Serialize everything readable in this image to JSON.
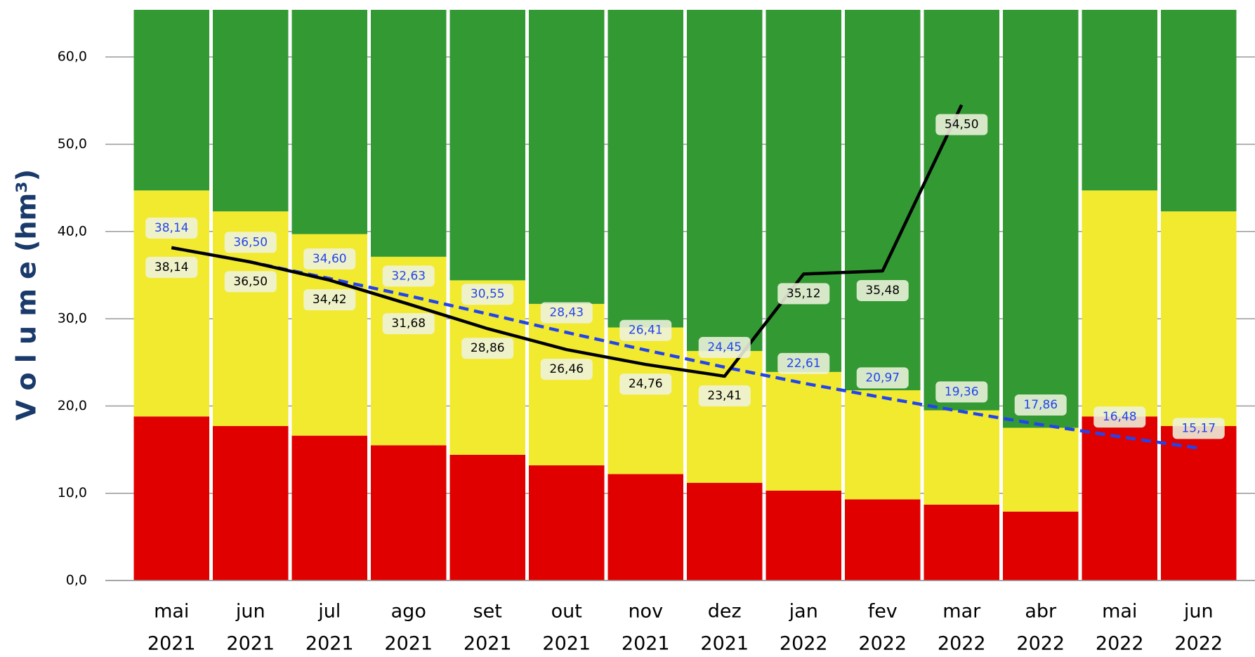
{
  "chart_data": {
    "type": "stacked-bar-line",
    "y_label": "V o l u m e  (hm³)",
    "categories": [
      [
        "mai",
        "2021"
      ],
      [
        "jun",
        "2021"
      ],
      [
        "jul",
        "2021"
      ],
      [
        "ago",
        "2021"
      ],
      [
        "set",
        "2021"
      ],
      [
        "out",
        "2021"
      ],
      [
        "nov",
        "2021"
      ],
      [
        "dez",
        "2021"
      ],
      [
        "jan",
        "2022"
      ],
      [
        "fev",
        "2022"
      ],
      [
        "mar",
        "2022"
      ],
      [
        "abr",
        "2022"
      ],
      [
        "mai",
        "2022"
      ],
      [
        "jun",
        "2022"
      ]
    ],
    "ylim": [
      0,
      65.4
    ],
    "yticks": [
      {
        "value": 0,
        "label": "0,0"
      },
      {
        "value": 10,
        "label": "10,0"
      },
      {
        "value": 20,
        "label": "20,0"
      },
      {
        "value": 30,
        "label": "30,0"
      },
      {
        "value": 40,
        "label": "40,0"
      },
      {
        "value": 50,
        "label": "50,0"
      },
      {
        "value": 60,
        "label": "60,0"
      }
    ],
    "grid": true,
    "stacks": [
      {
        "color": "#e00000",
        "values": [
          18.8,
          17.7,
          16.6,
          15.5,
          14.4,
          13.2,
          12.2,
          11.2,
          10.3,
          9.3,
          8.7,
          7.9,
          18.8,
          17.7
        ]
      },
      {
        "color": "#f2ea2e",
        "values": [
          25.9,
          24.6,
          23.1,
          21.6,
          20.0,
          18.5,
          16.8,
          15.1,
          13.6,
          12.5,
          10.8,
          9.6,
          25.9,
          24.6
        ]
      },
      {
        "color": "#339933",
        "values": [
          20.7,
          23.1,
          25.7,
          28.3,
          31.0,
          33.7,
          36.4,
          39.1,
          41.5,
          43.6,
          45.9,
          47.9,
          20.7,
          23.1
        ]
      }
    ],
    "lines": [
      {
        "color": "#2244ee",
        "dashed": true,
        "label_side": "above",
        "values": [
          38.14,
          36.5,
          34.6,
          32.63,
          30.55,
          28.43,
          26.41,
          24.45,
          22.61,
          20.97,
          19.36,
          17.86,
          16.48,
          15.17
        ],
        "value_labels": [
          "38,14",
          "36,50",
          "34,60",
          "32,63",
          "30,55",
          "28,43",
          "26,41",
          "24,45",
          "22,61",
          "20,97",
          "19,36",
          "17,86",
          "16,48",
          "15,17"
        ]
      },
      {
        "color": "#000000",
        "dashed": false,
        "label_side": "below",
        "values": [
          38.14,
          36.5,
          34.42,
          31.68,
          28.86,
          26.46,
          24.76,
          23.41,
          35.12,
          35.48,
          54.5,
          null,
          null,
          null
        ],
        "value_labels": [
          "38,14",
          "36,50",
          "34,42",
          "31,68",
          "28,86",
          "26,46",
          "24,76",
          "23,41",
          "35,12",
          "35,48",
          "54,50",
          null,
          null,
          null
        ]
      }
    ]
  }
}
